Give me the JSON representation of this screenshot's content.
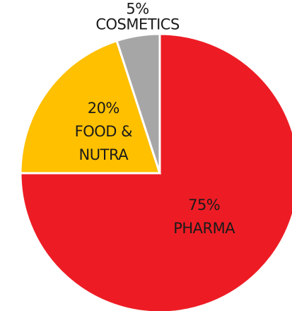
{
  "chart_data": {
    "type": "pie",
    "categories": [
      "PHARMA",
      "FOOD & NUTRA",
      "COSMETICS"
    ],
    "values": [
      75,
      20,
      5
    ],
    "value_labels": [
      "75%",
      "20%",
      "5%"
    ],
    "colors": [
      "#ed1c24",
      "#ffc000",
      "#a6a6a6"
    ]
  }
}
